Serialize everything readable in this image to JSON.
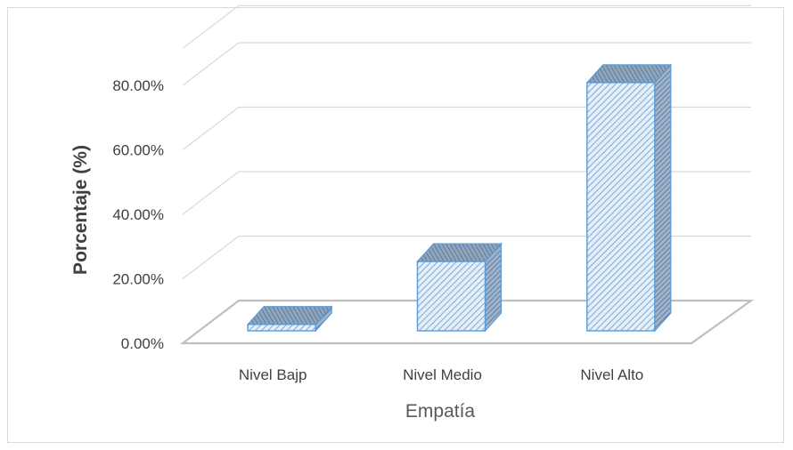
{
  "chart_data": {
    "type": "bar",
    "categories": [
      "Nivel Bajp",
      "Nivel Medio",
      "Nivel Alto"
    ],
    "series": [
      {
        "values": [
          2.0,
          21.5,
          77.0
        ]
      }
    ],
    "title": "",
    "xlabel": "Empatía",
    "ylabel": "Porcentaje (%)",
    "ylim": [
      0,
      80
    ],
    "yticks": [
      "0.00%",
      "20.00%",
      "40.00%",
      "60.00%",
      "80.00%"
    ],
    "ytick_values": [
      0,
      20,
      40,
      60,
      80
    ],
    "grid": true,
    "legend": "none",
    "style": "3d-column",
    "colors": {
      "bar_front": "#dce9f7",
      "bar_edge": "#5b9bd5",
      "bar_side": "#8fa9c4",
      "grid": "#d9d9d9",
      "floor": "#d9d9d9"
    }
  }
}
